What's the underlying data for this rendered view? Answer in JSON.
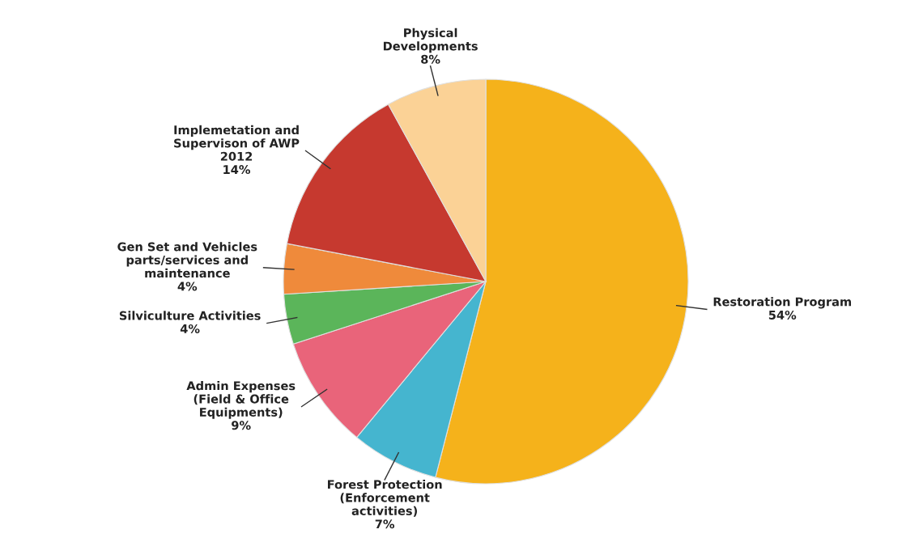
{
  "chart_data": {
    "type": "pie",
    "categories": [
      "Restoration Program",
      "Forest Protection\n(Enforcement\nactivities)",
      "Admin Expenses\n(Field & Office\nEquipments)",
      "Silviculture Activities",
      "Gen Set and Vehicles\nparts/services and\nmaintenance",
      "Implemetation and\nSupervison of AWP\n2012",
      "Physical\nDevelopments"
    ],
    "values": [
      54,
      7,
      9,
      4,
      4,
      14,
      8
    ],
    "value_labels": [
      "54%",
      "7%",
      "9%",
      "4%",
      "4%",
      "14%",
      "8%"
    ],
    "colors": [
      "#f5b21b",
      "#45b5cf",
      "#e9647a",
      "#5bb55a",
      "#ef8a3b",
      "#c6392f",
      "#fbd296"
    ],
    "legend": false
  }
}
